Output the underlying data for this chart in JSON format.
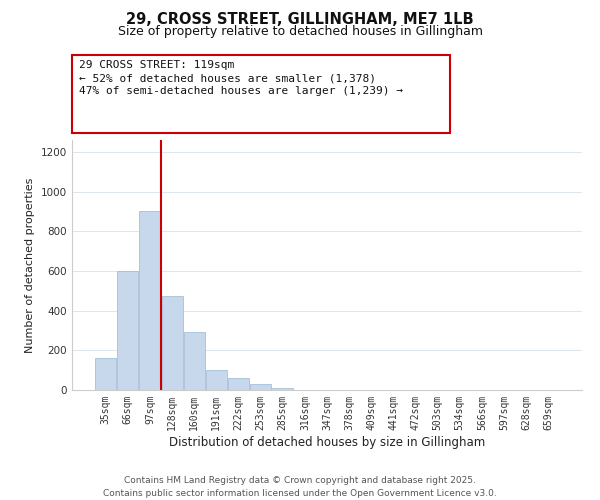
{
  "title_line1": "29, CROSS STREET, GILLINGHAM, ME7 1LB",
  "title_line2": "Size of property relative to detached houses in Gillingham",
  "xlabel": "Distribution of detached houses by size in Gillingham",
  "ylabel": "Number of detached properties",
  "categories": [
    "35sqm",
    "66sqm",
    "97sqm",
    "128sqm",
    "160sqm",
    "191sqm",
    "222sqm",
    "253sqm",
    "285sqm",
    "316sqm",
    "347sqm",
    "378sqm",
    "409sqm",
    "441sqm",
    "472sqm",
    "503sqm",
    "534sqm",
    "566sqm",
    "597sqm",
    "628sqm",
    "659sqm"
  ],
  "values": [
    160,
    600,
    900,
    475,
    290,
    100,
    60,
    28,
    12,
    0,
    0,
    0,
    0,
    0,
    0,
    0,
    0,
    0,
    0,
    0,
    0
  ],
  "bar_color": "#c8d8ec",
  "bar_edge_color": "#9ab8d0",
  "vline_color": "#cc0000",
  "vline_position": 2.5,
  "annotation_text_line1": "29 CROSS STREET: 119sqm",
  "annotation_text_line2": "← 52% of detached houses are smaller (1,378)",
  "annotation_text_line3": "47% of semi-detached houses are larger (1,239) →",
  "ylim": [
    0,
    1260
  ],
  "yticks": [
    0,
    200,
    400,
    600,
    800,
    1000,
    1200
  ],
  "background_color": "#ffffff",
  "grid_color": "#dce6f0",
  "footnote_line1": "Contains HM Land Registry data © Crown copyright and database right 2025.",
  "footnote_line2": "Contains public sector information licensed under the Open Government Licence v3.0.",
  "title_fontsize": 10.5,
  "subtitle_fontsize": 9,
  "tick_fontsize": 7,
  "ylabel_fontsize": 8,
  "xlabel_fontsize": 8.5,
  "annotation_fontsize": 8,
  "footnote_fontsize": 6.5
}
